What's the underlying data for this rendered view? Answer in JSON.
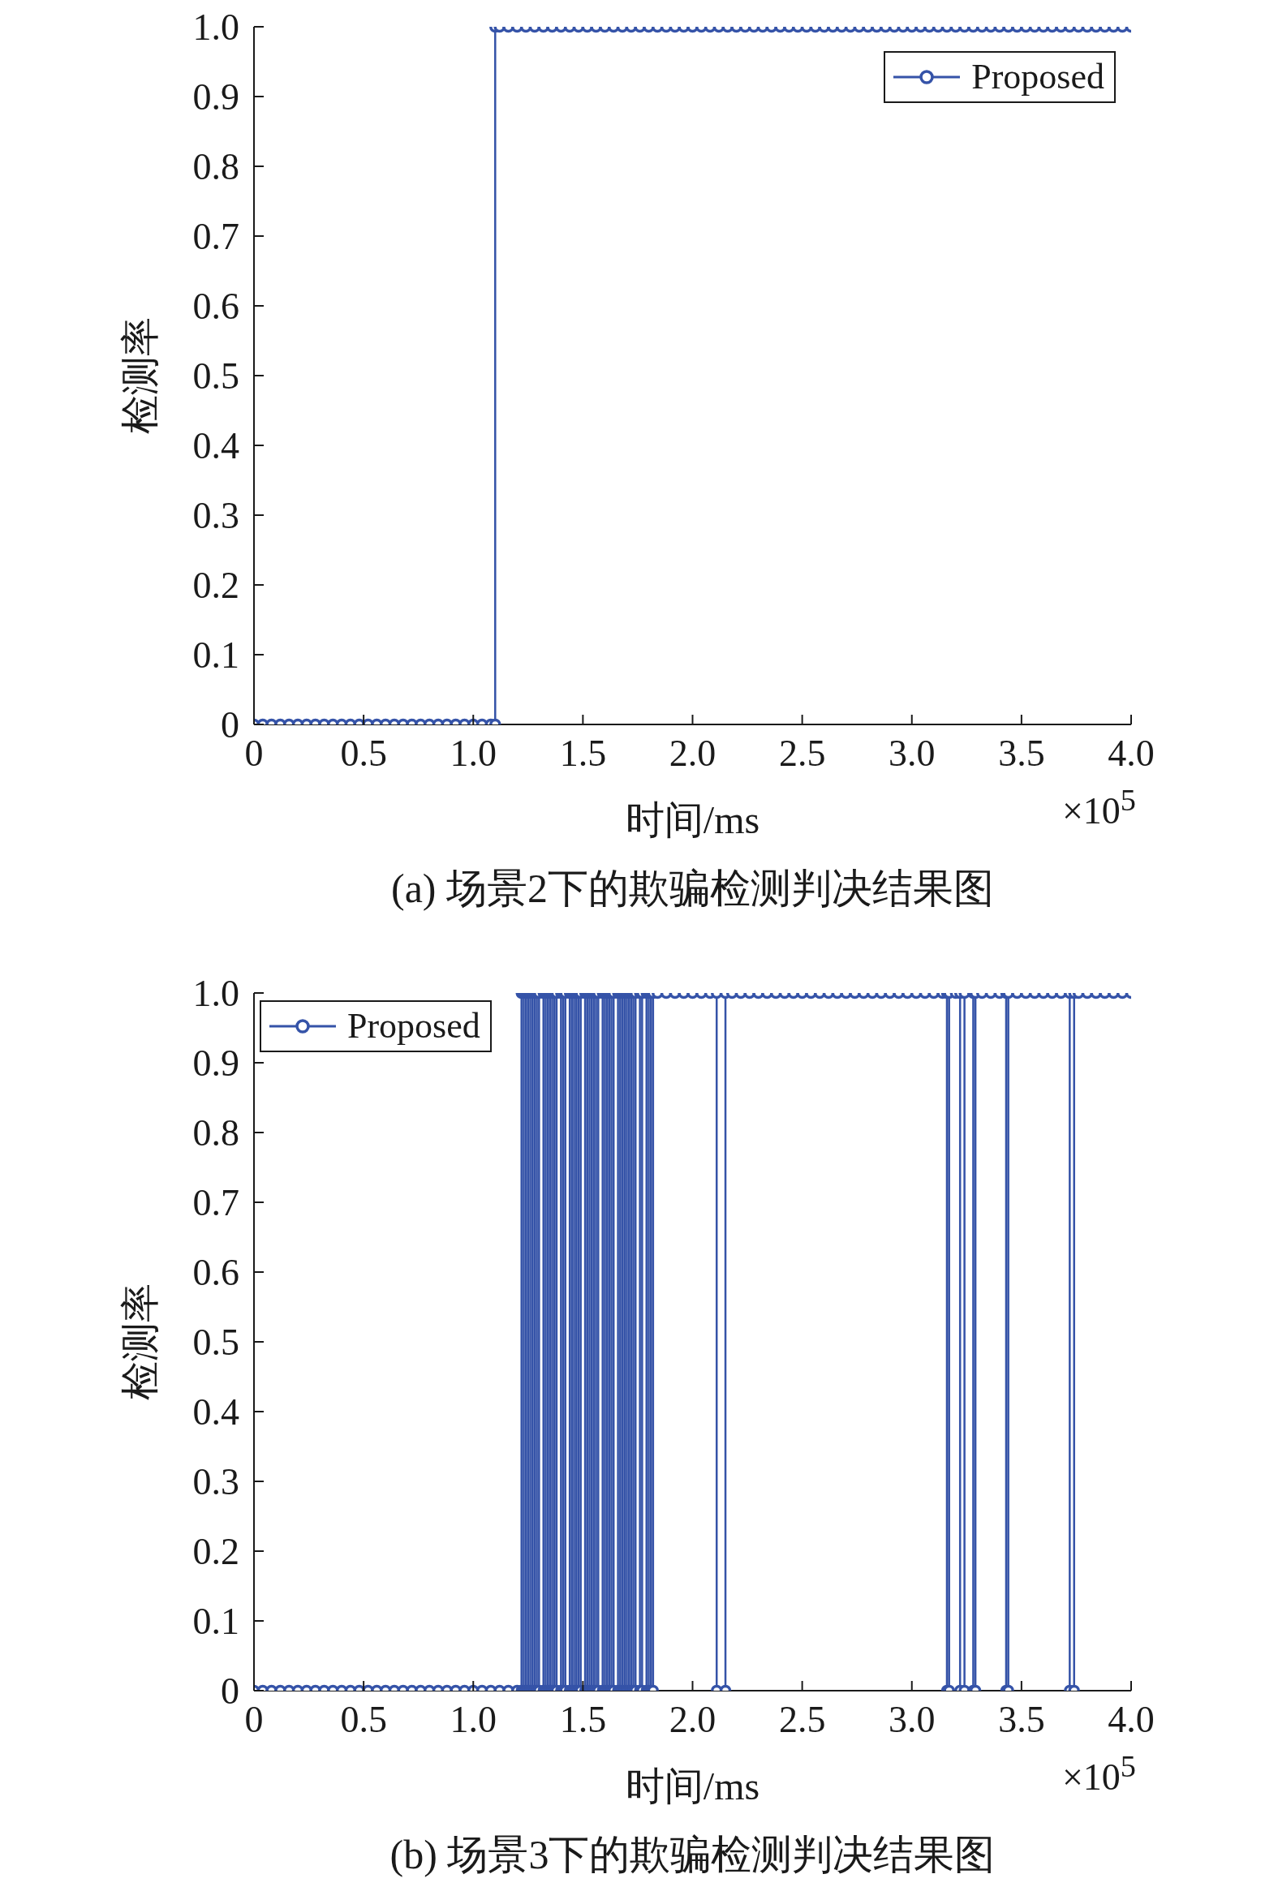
{
  "chart_data": [
    {
      "type": "line",
      "title": "(a) 场景2下的欺骗检测判决结果图",
      "xlabel": "时间/ms",
      "ylabel": "检测率",
      "annotations": [
        "×10$^{5}$"
      ],
      "xlim": [
        0,
        4
      ],
      "xticks": [
        0,
        0.5,
        {
          "value": 1,
          "label": "1.0"
        },
        1.5,
        {
          "value": 2,
          "label": "2.0"
        },
        2.5,
        {
          "value": 3,
          "label": "3.0"
        },
        3.5,
        {
          "value": 4,
          "label": "4.0"
        }
      ],
      "ylim": [
        0,
        1
      ],
      "yticks": [
        0,
        0.1,
        0.2,
        0.3,
        0.4,
        0.5,
        0.6,
        0.7,
        0.8,
        0.9,
        {
          "value": 1,
          "label": "1.0"
        }
      ],
      "marker": "circle",
      "legend": "top right",
      "series": [
        {
          "name": "Proposed",
          "color": "#3553a8",
          "x": [
            0,
            0.04,
            0.08,
            0.12,
            0.16,
            0.2,
            0.24,
            0.28,
            0.32,
            0.36,
            0.4,
            0.44,
            0.48,
            0.52,
            0.56,
            0.6,
            0.64,
            0.68,
            0.72,
            0.76,
            0.8,
            0.84,
            0.88,
            0.92,
            0.96,
            1,
            1.04,
            1.08,
            1.1,
            1.1,
            1.12,
            1.16,
            1.2,
            1.24,
            1.28,
            1.32,
            1.36,
            1.4,
            1.44,
            1.48,
            1.52,
            1.56,
            1.6,
            1.64,
            1.68,
            1.72,
            1.76,
            1.8,
            1.84,
            1.88,
            1.92,
            1.96,
            2,
            2.04,
            2.08,
            2.12,
            2.16,
            2.2,
            2.24,
            2.28,
            2.32,
            2.36,
            2.4,
            2.44,
            2.48,
            2.52,
            2.56,
            2.6,
            2.64,
            2.68,
            2.72,
            2.76,
            2.8,
            2.84,
            2.88,
            2.92,
            2.96,
            3,
            3.04,
            3.08,
            3.12,
            3.16,
            3.2,
            3.24,
            3.28,
            3.32,
            3.36,
            3.4,
            3.44,
            3.48,
            3.52,
            3.56,
            3.6,
            3.64,
            3.68,
            3.72,
            3.76,
            3.8,
            3.84,
            3.88,
            3.92,
            3.96,
            4
          ],
          "values": [
            0,
            0,
            0,
            0,
            0,
            0,
            0,
            0,
            0,
            0,
            0,
            0,
            0,
            0,
            0,
            0,
            0,
            0,
            0,
            0,
            0,
            0,
            0,
            0,
            0,
            0,
            0,
            0,
            0,
            1,
            1,
            1,
            1,
            1,
            1,
            1,
            1,
            1,
            1,
            1,
            1,
            1,
            1,
            1,
            1,
            1,
            1,
            1,
            1,
            1,
            1,
            1,
            1,
            1,
            1,
            1,
            1,
            1,
            1,
            1,
            1,
            1,
            1,
            1,
            1,
            1,
            1,
            1,
            1,
            1,
            1,
            1,
            1,
            1,
            1,
            1,
            1,
            1,
            1,
            1,
            1,
            1,
            1,
            1,
            1,
            1,
            1,
            1,
            1,
            1,
            1,
            1,
            1,
            1,
            1,
            1,
            1,
            1,
            1,
            1,
            1,
            1,
            1
          ]
        }
      ]
    },
    {
      "type": "line",
      "title": "(b) 场景3下的欺骗检测判决结果图",
      "xlabel": "时间/ms",
      "ylabel": "检测率",
      "annotations": [
        "×10$^{5}$"
      ],
      "xlim": [
        0,
        4
      ],
      "xticks": [
        0,
        0.5,
        {
          "value": 1,
          "label": "1.0"
        },
        1.5,
        {
          "value": 2,
          "label": "2.0"
        },
        2.5,
        {
          "value": 3,
          "label": "3.0"
        },
        3.5,
        {
          "value": 4,
          "label": "4.0"
        }
      ],
      "ylim": [
        0,
        1
      ],
      "yticks": [
        0,
        0.1,
        0.2,
        0.3,
        0.4,
        0.5,
        0.6,
        0.7,
        0.8,
        0.9,
        {
          "value": 1,
          "label": "1.0"
        }
      ],
      "marker": "circle",
      "legend": "top left",
      "series": [
        {
          "name": "Proposed",
          "color": "#3553a8",
          "x": [
            0,
            0.04,
            0.08,
            0.12,
            0.16,
            0.2,
            0.24,
            0.28,
            0.32,
            0.36,
            0.4,
            0.44,
            0.48,
            0.52,
            0.56,
            0.6,
            0.64,
            0.68,
            0.72,
            0.76,
            0.8,
            0.84,
            0.88,
            0.92,
            0.96,
            1,
            1.04,
            1.08,
            1.12,
            1.16,
            1.2,
            1.22,
            1.22,
            1.23,
            1.23,
            1.24,
            1.24,
            1.25,
            1.25,
            1.26,
            1.26,
            1.27,
            1.27,
            1.28,
            1.28,
            1.29,
            1.29,
            1.3,
            1.3,
            1.32,
            1.32,
            1.33,
            1.33,
            1.34,
            1.34,
            1.35,
            1.35,
            1.36,
            1.36,
            1.37,
            1.37,
            1.38,
            1.38,
            1.4,
            1.4,
            1.41,
            1.41,
            1.42,
            1.42,
            1.44,
            1.44,
            1.45,
            1.45,
            1.46,
            1.46,
            1.47,
            1.47,
            1.48,
            1.48,
            1.49,
            1.49,
            1.51,
            1.51,
            1.52,
            1.52,
            1.53,
            1.53,
            1.54,
            1.54,
            1.55,
            1.55,
            1.56,
            1.56,
            1.57,
            1.57,
            1.59,
            1.59,
            1.6,
            1.6,
            1.61,
            1.61,
            1.62,
            1.62,
            1.63,
            1.63,
            1.64,
            1.64,
            1.66,
            1.66,
            1.67,
            1.67,
            1.68,
            1.68,
            1.69,
            1.69,
            1.7,
            1.7,
            1.71,
            1.71,
            1.72,
            1.72,
            1.73,
            1.73,
            1.74,
            1.74,
            1.76,
            1.76,
            1.77,
            1.77,
            1.79,
            1.79,
            1.8,
            1.8,
            1.81,
            1.81,
            1.82,
            1.82,
            1.84,
            1.88,
            1.92,
            1.96,
            2,
            2.04,
            2.08,
            2.11,
            2.11,
            2.15,
            2.15,
            2.18,
            2.22,
            2.26,
            2.3,
            2.34,
            2.38,
            2.42,
            2.46,
            2.5,
            2.54,
            2.58,
            2.62,
            2.66,
            2.7,
            2.74,
            2.78,
            2.82,
            2.86,
            2.9,
            2.94,
            2.98,
            3.02,
            3.06,
            3.1,
            3.14,
            3.16,
            3.16,
            3.17,
            3.17,
            3.2,
            3.22,
            3.22,
            3.24,
            3.24,
            3.28,
            3.28,
            3.29,
            3.29,
            3.32,
            3.36,
            3.4,
            3.43,
            3.43,
            3.44,
            3.44,
            3.48,
            3.52,
            3.56,
            3.6,
            3.64,
            3.68,
            3.72,
            3.72,
            3.74,
            3.74,
            3.76,
            3.8,
            3.84,
            3.88,
            3.92,
            3.96,
            4
          ],
          "values": [
            0,
            0,
            0,
            0,
            0,
            0,
            0,
            0,
            0,
            0,
            0,
            0,
            0,
            0,
            0,
            0,
            0,
            0,
            0,
            0,
            0,
            0,
            0,
            0,
            0,
            0,
            0,
            0,
            0,
            0,
            0,
            0,
            1,
            1,
            0,
            0,
            1,
            1,
            0,
            0,
            1,
            1,
            0,
            0,
            1,
            1,
            0,
            0,
            1,
            1,
            0,
            0,
            1,
            1,
            0,
            0,
            1,
            1,
            0,
            0,
            1,
            1,
            0,
            0,
            1,
            1,
            0,
            0,
            1,
            1,
            0,
            0,
            1,
            1,
            0,
            0,
            1,
            1,
            0,
            0,
            1,
            1,
            0,
            0,
            1,
            1,
            0,
            0,
            1,
            1,
            0,
            0,
            1,
            1,
            0,
            0,
            1,
            1,
            0,
            0,
            1,
            1,
            0,
            0,
            1,
            1,
            0,
            0,
            1,
            1,
            0,
            0,
            1,
            1,
            0,
            0,
            1,
            1,
            0,
            0,
            1,
            1,
            0,
            0,
            1,
            1,
            0,
            0,
            1,
            1,
            0,
            0,
            1,
            1,
            0,
            0,
            1,
            1,
            1,
            1,
            1,
            1,
            1,
            1,
            1,
            0,
            0,
            1,
            1,
            1,
            1,
            1,
            1,
            1,
            1,
            1,
            1,
            1,
            1,
            1,
            1,
            1,
            1,
            1,
            1,
            1,
            1,
            1,
            1,
            1,
            1,
            1,
            1,
            1,
            0,
            0,
            1,
            1,
            1,
            0,
            0,
            1,
            1,
            0,
            0,
            1,
            1,
            1,
            1,
            1,
            0,
            0,
            1,
            1,
            1,
            1,
            1,
            1,
            1,
            1,
            0,
            0,
            1,
            1,
            1,
            1,
            1,
            1,
            1,
            1
          ]
        }
      ]
    }
  ]
}
